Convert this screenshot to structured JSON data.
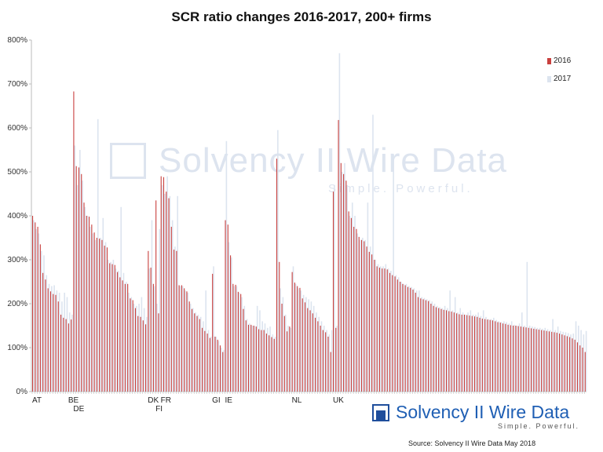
{
  "chart_data": {
    "type": "bar",
    "title": "SCR ratio changes 2016-2017, 200+ firms",
    "xlabel": "",
    "ylabel": "",
    "ylim": [
      0,
      800
    ],
    "yticks": [
      "0%",
      "100%",
      "200%",
      "300%",
      "400%",
      "500%",
      "600%",
      "700%",
      "800%"
    ],
    "grid": false,
    "legend": "top-right",
    "category_labels": [
      {
        "label": "AT",
        "index": 0
      },
      {
        "label": "BE",
        "index": 14
      },
      {
        "label": "DE",
        "index": 16
      },
      {
        "label": "DK",
        "index": 45
      },
      {
        "label": "FI",
        "index": 48
      },
      {
        "label": "FR",
        "index": 50
      },
      {
        "label": "GI",
        "index": 70
      },
      {
        "label": "IE",
        "index": 75
      },
      {
        "label": "NL",
        "index": 101
      },
      {
        "label": "UK",
        "index": 117
      }
    ],
    "series": [
      {
        "name": "2016",
        "color": "#c9403e",
        "values": [
          400,
          385,
          375,
          335,
          270,
          255,
          235,
          228,
          222,
          220,
          205,
          175,
          168,
          165,
          155,
          164,
          683,
          513,
          510,
          495,
          430,
          400,
          398,
          380,
          362,
          350,
          348,
          345,
          332,
          328,
          292,
          290,
          288,
          272,
          260,
          253,
          245,
          245,
          212,
          208,
          190,
          172,
          170,
          162,
          153,
          320,
          282,
          245,
          435,
          178,
          490,
          488,
          455,
          440,
          375,
          323,
          320,
          242,
          242,
          235,
          228,
          205,
          188,
          178,
          172,
          165,
          145,
          138,
          132,
          122,
          268,
          125,
          118,
          105,
          90,
          390,
          380,
          310,
          245,
          243,
          227,
          222,
          188,
          162,
          152,
          152,
          150,
          148,
          142,
          140,
          140,
          132,
          128,
          124,
          120,
          530,
          295,
          200,
          172,
          137,
          148,
          272,
          248,
          240,
          236,
          212,
          203,
          190,
          185,
          178,
          168,
          160,
          150,
          140,
          135,
          125,
          90,
          455,
          145,
          618,
          520,
          495,
          480,
          410,
          395,
          375,
          370,
          352,
          345,
          342,
          330,
          318,
          312,
          300,
          285,
          282,
          280,
          280,
          278,
          270,
          265,
          262,
          255,
          250,
          245,
          242,
          238,
          236,
          232,
          225,
          215,
          212,
          210,
          208,
          206,
          200,
          195,
          192,
          190,
          188,
          186,
          185,
          183,
          182,
          180,
          178,
          176,
          175,
          175,
          174,
          173,
          172,
          171,
          170,
          168,
          166,
          165,
          164,
          163,
          162,
          160,
          158,
          157,
          155,
          154,
          152,
          151,
          150,
          150,
          149,
          148,
          147,
          146,
          145,
          144,
          143,
          142,
          141,
          140,
          139,
          138,
          137,
          136,
          135,
          134,
          132,
          130,
          128,
          126,
          124,
          121,
          118,
          112,
          105,
          100,
          90
        ]
      },
      {
        "name": "2017",
        "color": "#dce4ef",
        "values": [
          390,
          370,
          360,
          320,
          310,
          265,
          245,
          240,
          242,
          230,
          225,
          205,
          225,
          215,
          180,
          175,
          560,
          470,
          550,
          480,
          420,
          400,
          375,
          360,
          345,
          620,
          350,
          395,
          340,
          300,
          295,
          300,
          280,
          275,
          420,
          270,
          250,
          225,
          215,
          200,
          195,
          200,
          215,
          190,
          170,
          280,
          390,
          240,
          200,
          370,
          470,
          450,
          490,
          445,
          390,
          330,
          445,
          240,
          240,
          230,
          225,
          200,
          190,
          180,
          175,
          170,
          160,
          230,
          140,
          125,
          285,
          125,
          115,
          100,
          95,
          570,
          340,
          305,
          240,
          240,
          225,
          215,
          195,
          165,
          155,
          150,
          150,
          195,
          185,
          160,
          155,
          145,
          148,
          130,
          125,
          595,
          235,
          215,
          175,
          150,
          145,
          285,
          245,
          235,
          230,
          220,
          215,
          210,
          205,
          195,
          180,
          170,
          160,
          150,
          140,
          130,
          140,
          470,
          150,
          770,
          500,
          520,
          470,
          400,
          430,
          400,
          360,
          345,
          350,
          345,
          430,
          330,
          630,
          300,
          290,
          285,
          285,
          290,
          280,
          275,
          540,
          265,
          260,
          250,
          245,
          245,
          240,
          238,
          235,
          230,
          230,
          215,
          213,
          210,
          208,
          205,
          200,
          195,
          192,
          190,
          195,
          190,
          230,
          185,
          215,
          180,
          190,
          180,
          175,
          180,
          185,
          175,
          175,
          180,
          172,
          185,
          170,
          165,
          165,
          168,
          163,
          160,
          158,
          160,
          158,
          155,
          160,
          152,
          150,
          155,
          180,
          150,
          295,
          150,
          148,
          147,
          145,
          145,
          143,
          145,
          142,
          140,
          165,
          140,
          148,
          138,
          136,
          135,
          133,
          130,
          132,
          160,
          150,
          140,
          130,
          138
        ]
      }
    ]
  },
  "watermark": {
    "name": "Solvency II Wire Data",
    "tagline": "Simple. Powerful."
  },
  "logo": {
    "name": "Solvency II Wire Data",
    "tagline": "Simple. Powerful."
  },
  "source": "Source: Solvency II Wire Data May 2018"
}
